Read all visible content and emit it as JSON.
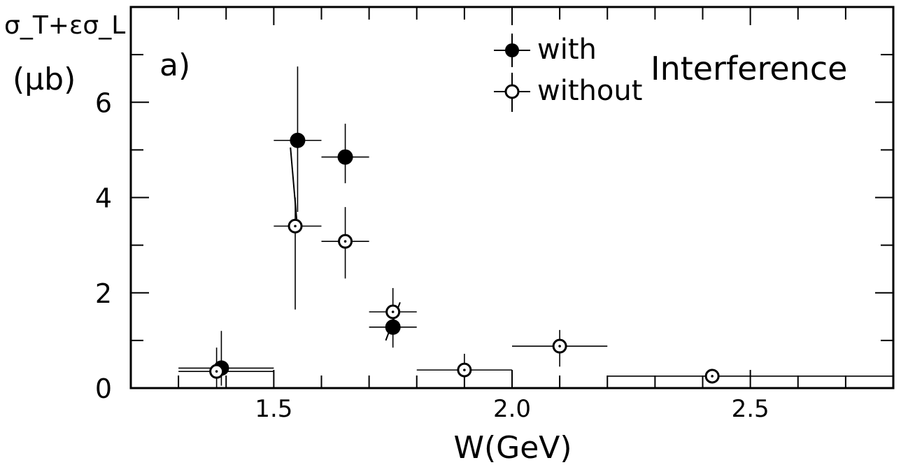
{
  "chart_data": {
    "type": "scatter",
    "panel_label": "a)",
    "title": "Interference",
    "ylabel_line1": "σ_T+εσ_L",
    "ylabel_line2": "(μb)",
    "xlabel": "W(GeV)",
    "xlim": [
      1.2,
      2.8
    ],
    "ylim": [
      0,
      8
    ],
    "x_ticks": [
      1.5,
      2.0,
      2.5
    ],
    "x_tick_labels": [
      "1.5",
      "2.0",
      "2.5"
    ],
    "y_ticks": [
      0,
      2,
      4,
      6
    ],
    "y_tick_labels": [
      "0",
      "2",
      "4",
      "6"
    ],
    "legend": {
      "placement": "top-center",
      "entries": [
        "with",
        "without"
      ]
    },
    "series": [
      {
        "name": "with",
        "marker": "filled-circle",
        "points": [
          {
            "x": 1.39,
            "y": 0.42,
            "xerr": [
              1.3,
              1.5
            ],
            "yerr": [
              0.05,
              1.2
            ]
          },
          {
            "x": 1.55,
            "y": 5.2,
            "xerr": [
              1.5,
              1.6
            ],
            "yerr": [
              3.7,
              6.75
            ]
          },
          {
            "x": 1.65,
            "y": 4.85,
            "xerr": [
              1.6,
              1.7
            ],
            "yerr": [
              4.3,
              5.55
            ]
          },
          {
            "x": 1.75,
            "y": 1.28,
            "xerr": [
              1.7,
              1.8
            ],
            "yerr": [
              0.85,
              1.75
            ]
          }
        ]
      },
      {
        "name": "without",
        "marker": "open-circle",
        "points": [
          {
            "x": 1.38,
            "y": 0.35,
            "xerr": [
              1.3,
              1.5
            ],
            "yerr": [
              0.0,
              0.85
            ]
          },
          {
            "x": 1.545,
            "y": 3.4,
            "xerr": [
              1.5,
              1.6
            ],
            "yerr": [
              1.65,
              4.0
            ]
          },
          {
            "x": 1.65,
            "y": 3.08,
            "xerr": [
              1.6,
              1.7
            ],
            "yerr": [
              2.3,
              3.8
            ]
          },
          {
            "x": 1.75,
            "y": 1.6,
            "xerr": [
              1.7,
              1.8
            ],
            "yerr": [
              1.2,
              2.1
            ]
          },
          {
            "x": 1.9,
            "y": 0.38,
            "xerr": [
              1.8,
              2.0
            ],
            "yerr": [
              0.05,
              0.72
            ]
          },
          {
            "x": 2.1,
            "y": 0.88,
            "xerr": [
              2.0,
              2.2
            ],
            "yerr": [
              0.45,
              1.22
            ]
          },
          {
            "x": 2.42,
            "y": 0.25,
            "xerr": [
              2.2,
              2.8
            ],
            "yerr": [
              0.1,
              0.35
            ]
          }
        ]
      }
    ],
    "connectors": [
      {
        "from": [
          1.535,
          5.05
        ],
        "to": [
          1.548,
          3.55
        ]
      },
      {
        "from": [
          1.735,
          1.0
        ],
        "to": [
          1.765,
          1.8
        ]
      }
    ],
    "grid": false
  }
}
